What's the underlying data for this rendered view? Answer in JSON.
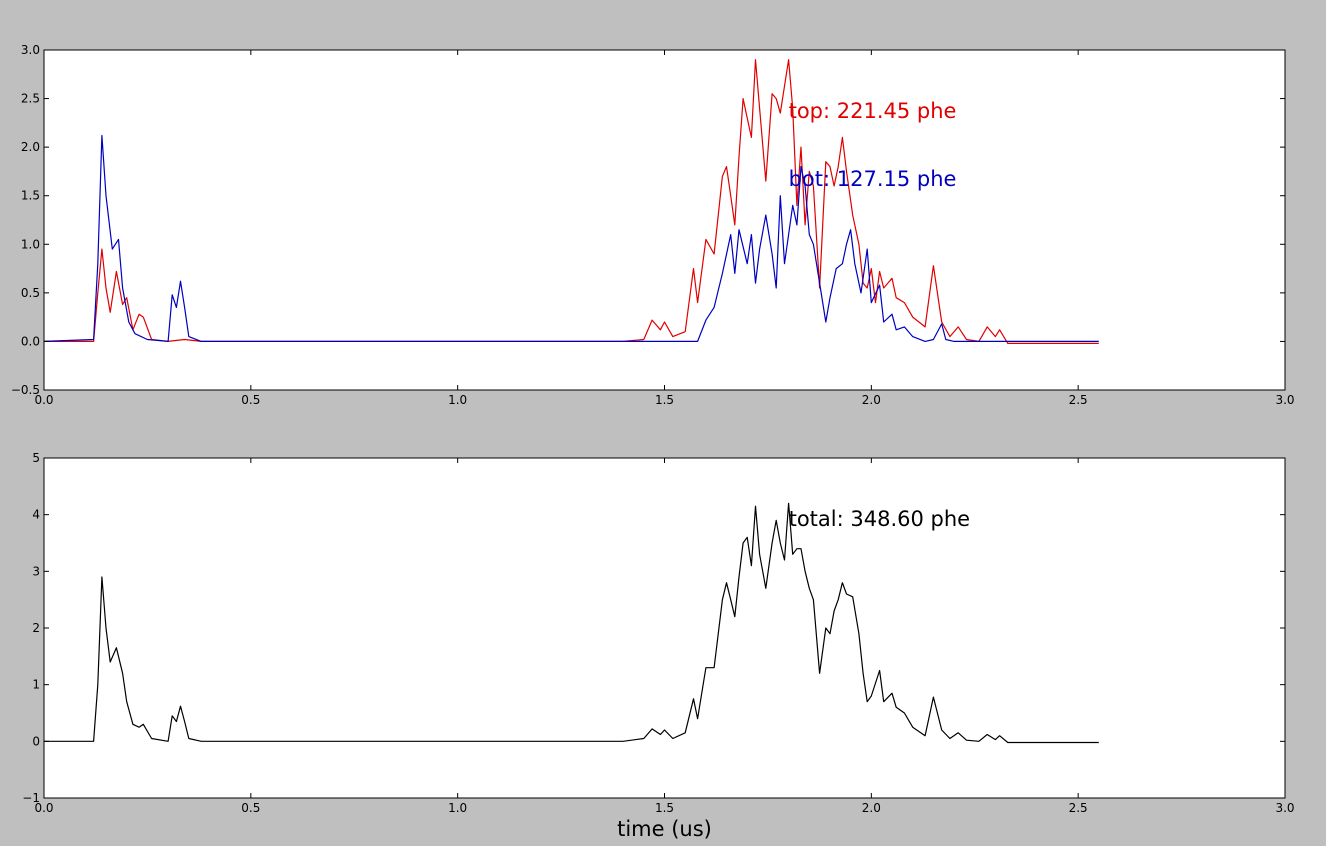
{
  "chart_data": [
    {
      "type": "line",
      "xlim": [
        0.0,
        3.0
      ],
      "ylim": [
        -0.5,
        3.0
      ],
      "xticks": [
        0.0,
        0.5,
        1.0,
        1.5,
        2.0,
        2.5,
        3.0
      ],
      "yticks": [
        -0.5,
        0.0,
        0.5,
        1.0,
        1.5,
        2.0,
        2.5,
        3.0
      ],
      "xtick_labels": [
        "0.0",
        "0.5",
        "1.0",
        "1.5",
        "2.0",
        "2.5",
        "3.0"
      ],
      "ytick_labels": [
        "−0.5",
        "0.0",
        "0.5",
        "1.0",
        "1.5",
        "2.0",
        "2.5",
        "3.0"
      ],
      "grid": false,
      "annotations": [
        {
          "text": "top: 221.45 phe",
          "x": 1.8,
          "y": 2.3,
          "color": "#e00000"
        },
        {
          "text": "bot: 127.15 phe",
          "x": 1.8,
          "y": 1.6,
          "color": "#0000c0"
        }
      ],
      "series": [
        {
          "color": "#e00000",
          "x": [
            0.0,
            0.12,
            0.13,
            0.14,
            0.15,
            0.16,
            0.175,
            0.19,
            0.2,
            0.215,
            0.23,
            0.24,
            0.26,
            0.3,
            0.34,
            0.38,
            0.45,
            0.6,
            0.8,
            1.0,
            1.2,
            1.4,
            1.45,
            1.47,
            1.49,
            1.5,
            1.52,
            1.55,
            1.57,
            1.58,
            1.6,
            1.62,
            1.64,
            1.65,
            1.66,
            1.67,
            1.68,
            1.69,
            1.7,
            1.71,
            1.72,
            1.73,
            1.745,
            1.76,
            1.77,
            1.78,
            1.8,
            1.81,
            1.82,
            1.83,
            1.84,
            1.85,
            1.86,
            1.875,
            1.89,
            1.9,
            1.91,
            1.92,
            1.93,
            1.94,
            1.955,
            1.97,
            1.98,
            1.99,
            2.0,
            2.01,
            2.02,
            2.03,
            2.05,
            2.06,
            2.08,
            2.1,
            2.13,
            2.15,
            2.17,
            2.19,
            2.21,
            2.23,
            2.26,
            2.28,
            2.3,
            2.31,
            2.33,
            2.4,
            2.5,
            2.55
          ],
          "y": [
            0.0,
            0.0,
            0.5,
            0.95,
            0.55,
            0.3,
            0.72,
            0.38,
            0.45,
            0.12,
            0.28,
            0.25,
            0.02,
            0.0,
            0.02,
            0.0,
            0.0,
            0.0,
            0.0,
            0.0,
            0.0,
            0.0,
            0.02,
            0.22,
            0.12,
            0.2,
            0.05,
            0.1,
            0.75,
            0.4,
            1.05,
            0.9,
            1.7,
            1.8,
            1.5,
            1.2,
            1.9,
            2.5,
            2.3,
            2.1,
            2.9,
            2.4,
            1.65,
            2.55,
            2.5,
            2.35,
            2.9,
            2.4,
            1.4,
            2.0,
            1.2,
            1.75,
            1.6,
            0.55,
            1.85,
            1.8,
            1.6,
            1.8,
            2.1,
            1.75,
            1.3,
            1.0,
            0.6,
            0.55,
            0.75,
            0.4,
            0.72,
            0.55,
            0.65,
            0.45,
            0.4,
            0.25,
            0.15,
            0.78,
            0.2,
            0.05,
            0.15,
            0.02,
            0.0,
            0.15,
            0.05,
            0.12,
            -0.02,
            -0.02,
            -0.02,
            -0.02
          ]
        },
        {
          "color": "#0000c0",
          "x": [
            0.0,
            0.12,
            0.13,
            0.14,
            0.15,
            0.165,
            0.18,
            0.19,
            0.205,
            0.22,
            0.25,
            0.3,
            0.31,
            0.32,
            0.33,
            0.34,
            0.35,
            0.38,
            0.45,
            0.6,
            0.8,
            1.0,
            1.2,
            1.4,
            1.5,
            1.58,
            1.6,
            1.62,
            1.64,
            1.66,
            1.67,
            1.68,
            1.7,
            1.71,
            1.72,
            1.73,
            1.745,
            1.76,
            1.77,
            1.78,
            1.79,
            1.8,
            1.81,
            1.82,
            1.83,
            1.84,
            1.85,
            1.86,
            1.875,
            1.89,
            1.9,
            1.915,
            1.93,
            1.94,
            1.95,
            1.96,
            1.975,
            1.99,
            2.0,
            2.02,
            2.03,
            2.05,
            2.06,
            2.08,
            2.1,
            2.13,
            2.15,
            2.17,
            2.18,
            2.2,
            2.3,
            2.4,
            2.55
          ],
          "y": [
            0.0,
            0.02,
            0.8,
            2.12,
            1.5,
            0.95,
            1.05,
            0.55,
            0.2,
            0.08,
            0.02,
            0.0,
            0.48,
            0.35,
            0.62,
            0.35,
            0.05,
            0.0,
            0.0,
            0.0,
            0.0,
            0.0,
            0.0,
            0.0,
            0.0,
            0.0,
            0.22,
            0.35,
            0.7,
            1.1,
            0.7,
            1.15,
            0.8,
            1.1,
            0.6,
            0.95,
            1.3,
            0.9,
            0.55,
            1.5,
            0.8,
            1.1,
            1.4,
            1.2,
            1.8,
            1.6,
            1.1,
            1.0,
            0.6,
            0.2,
            0.45,
            0.75,
            0.8,
            1.0,
            1.15,
            0.8,
            0.5,
            0.95,
            0.4,
            0.58,
            0.2,
            0.28,
            0.12,
            0.15,
            0.05,
            0.0,
            0.02,
            0.18,
            0.02,
            0.0,
            0.0,
            0.0,
            0.0
          ]
        }
      ]
    },
    {
      "type": "line",
      "xlim": [
        0.0,
        3.0
      ],
      "ylim": [
        -1,
        5
      ],
      "xticks": [
        0.0,
        0.5,
        1.0,
        1.5,
        2.0,
        2.5,
        3.0
      ],
      "yticks": [
        -1,
        0,
        1,
        2,
        3,
        4,
        5
      ],
      "xtick_labels": [
        "0.0",
        "0.5",
        "1.0",
        "1.5",
        "2.0",
        "2.5",
        "3.0"
      ],
      "ytick_labels": [
        "−1",
        "0",
        "1",
        "2",
        "3",
        "4",
        "5"
      ],
      "xlabel": "time (us)",
      "grid": false,
      "annotations": [
        {
          "text": "total: 348.60 phe",
          "x": 1.8,
          "y": 3.8,
          "color": "#000000"
        }
      ],
      "series": [
        {
          "color": "#000000",
          "x": [
            0.0,
            0.12,
            0.13,
            0.14,
            0.15,
            0.16,
            0.175,
            0.19,
            0.2,
            0.215,
            0.23,
            0.24,
            0.26,
            0.3,
            0.31,
            0.32,
            0.33,
            0.34,
            0.35,
            0.38,
            0.45,
            0.6,
            0.8,
            1.0,
            1.2,
            1.4,
            1.45,
            1.47,
            1.49,
            1.5,
            1.52,
            1.55,
            1.57,
            1.58,
            1.6,
            1.62,
            1.64,
            1.65,
            1.66,
            1.67,
            1.68,
            1.69,
            1.7,
            1.71,
            1.72,
            1.73,
            1.745,
            1.76,
            1.77,
            1.78,
            1.79,
            1.8,
            1.81,
            1.82,
            1.83,
            1.84,
            1.85,
            1.86,
            1.875,
            1.89,
            1.9,
            1.91,
            1.92,
            1.93,
            1.94,
            1.955,
            1.97,
            1.98,
            1.99,
            2.0,
            2.02,
            2.03,
            2.05,
            2.06,
            2.08,
            2.1,
            2.13,
            2.15,
            2.17,
            2.19,
            2.21,
            2.23,
            2.26,
            2.28,
            2.3,
            2.31,
            2.33,
            2.4,
            2.5,
            2.55
          ],
          "y": [
            0.0,
            0.0,
            1.0,
            2.9,
            2.0,
            1.4,
            1.65,
            1.2,
            0.7,
            0.3,
            0.25,
            0.3,
            0.05,
            0.0,
            0.45,
            0.35,
            0.62,
            0.35,
            0.05,
            0.0,
            0.0,
            0.0,
            0.0,
            0.0,
            0.0,
            0.0,
            0.05,
            0.22,
            0.12,
            0.2,
            0.05,
            0.15,
            0.75,
            0.4,
            1.3,
            1.3,
            2.5,
            2.8,
            2.5,
            2.2,
            2.9,
            3.5,
            3.6,
            3.1,
            4.15,
            3.3,
            2.7,
            3.5,
            3.9,
            3.5,
            3.2,
            4.2,
            3.3,
            3.4,
            3.4,
            3.0,
            2.7,
            2.5,
            1.2,
            2.0,
            1.9,
            2.3,
            2.5,
            2.8,
            2.6,
            2.55,
            1.9,
            1.2,
            0.7,
            0.8,
            1.25,
            0.7,
            0.85,
            0.6,
            0.5,
            0.25,
            0.1,
            0.78,
            0.2,
            0.05,
            0.15,
            0.02,
            0.0,
            0.12,
            0.03,
            0.1,
            -0.02,
            -0.02,
            -0.02,
            -0.02
          ]
        }
      ]
    }
  ]
}
